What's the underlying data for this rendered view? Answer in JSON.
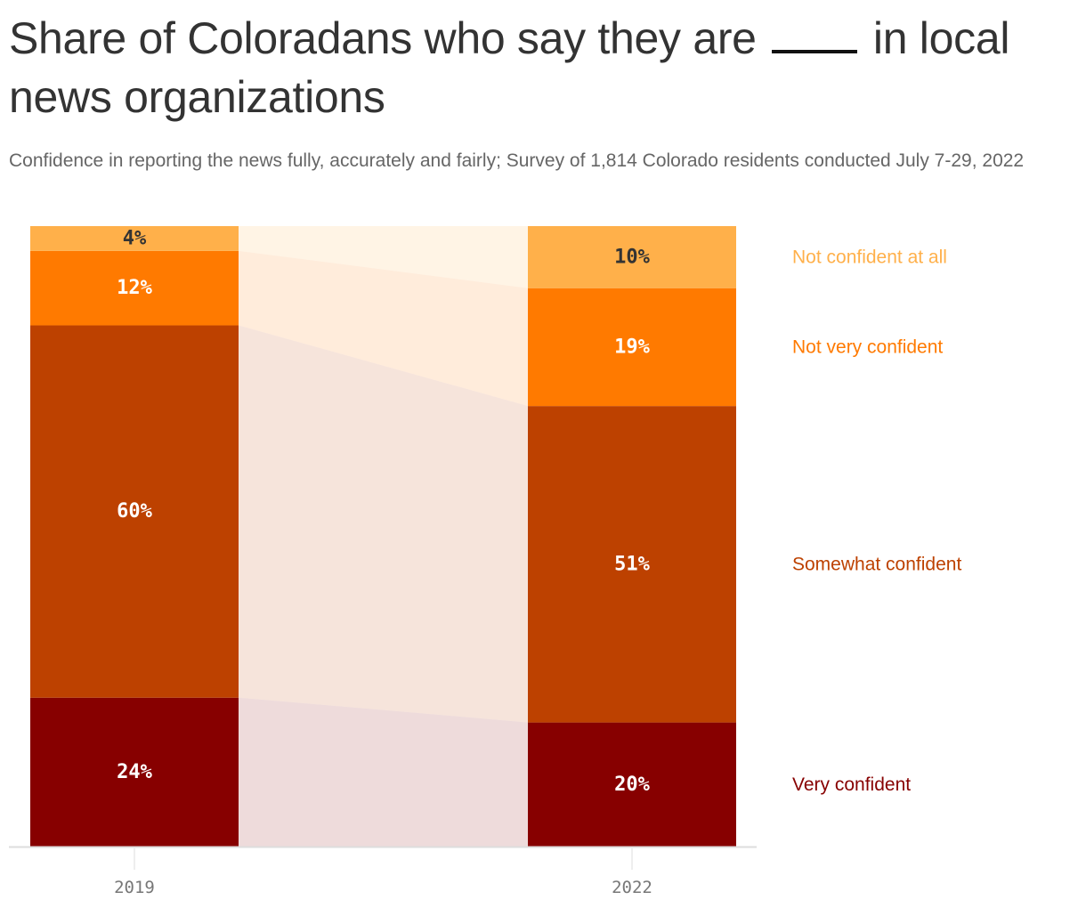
{
  "header": {
    "title_before": "Share of Coloradans who say they are",
    "title_after": "in local news organizations",
    "subtitle": "Confidence in reporting the news fully, accurately and fairly; Survey of 1,814 Colorado residents conducted July 7-29, 2022"
  },
  "chart_data": {
    "type": "bar",
    "stacked": true,
    "percent_stacked": true,
    "categories": [
      "2019",
      "2022"
    ],
    "ylim": [
      0,
      100
    ],
    "series": [
      {
        "name": "Very confident",
        "values": [
          24,
          20
        ],
        "labels": [
          "24%",
          "20%"
        ],
        "color": "#870000",
        "label_color": "#ffffff"
      },
      {
        "name": "Somewhat confident",
        "values": [
          60,
          51
        ],
        "labels": [
          "60%",
          "51%"
        ],
        "color": "#BD4100",
        "label_color": "#ffffff"
      },
      {
        "name": "Not very confident",
        "values": [
          12,
          19
        ],
        "labels": [
          "12%",
          "19%"
        ],
        "color": "#FF7A00",
        "label_color": "#ffffff"
      },
      {
        "name": "Not confident at all",
        "values": [
          4,
          10
        ],
        "labels": [
          "4%",
          "10%"
        ],
        "color": "#FFB04A",
        "label_color": "#333333"
      }
    ],
    "legend_placement": "right",
    "grid": false
  }
}
